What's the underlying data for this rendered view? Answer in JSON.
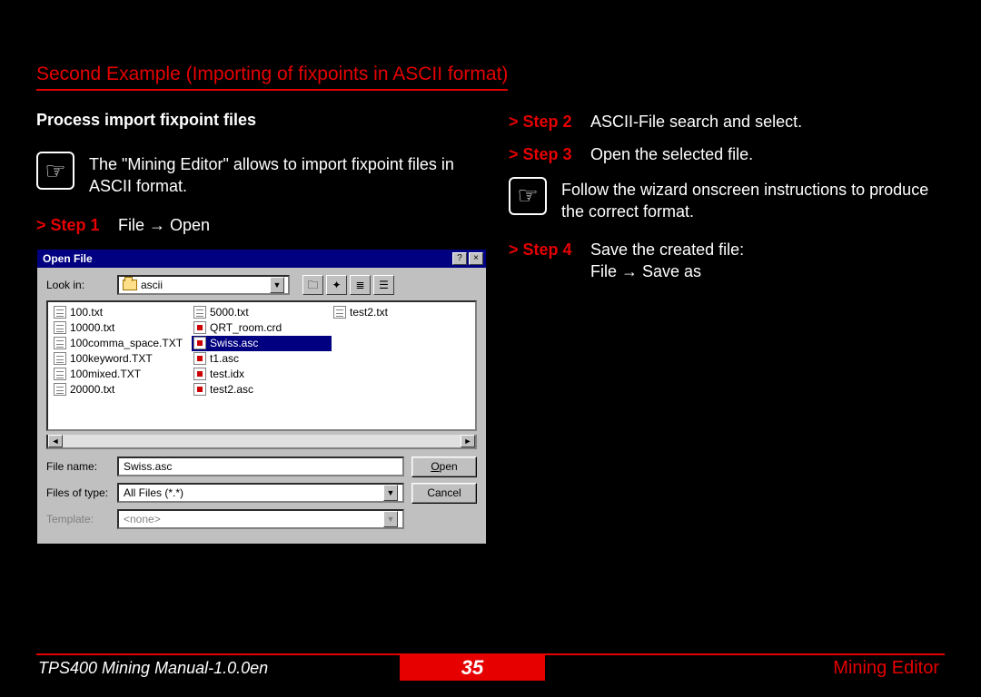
{
  "title": "Second Example (Importing of fixpoints in ASCII format)",
  "left": {
    "subheading": "Process import fixpoint files",
    "note": "The \"Mining Editor\" allows to import fixpoint files in ASCII format.",
    "step1_label": "> Step 1",
    "step1_text": "File → Open"
  },
  "right": {
    "step2_label": "> Step 2",
    "step2_text": "ASCII-File search and select.",
    "step3_label": "> Step 3",
    "step3_text": "Open the selected file.",
    "note": "Follow the wizard onscreen instructions to produce the correct format.",
    "step4_label": "> Step 4",
    "step4_text": "Save the created file:\nFile → Save as"
  },
  "dialog": {
    "title": "Open File",
    "lookin_label": "Look in:",
    "lookin_value": "ascii",
    "files_col1": [
      {
        "name": "100.txt",
        "type": "txt"
      },
      {
        "name": "10000.txt",
        "type": "txt"
      },
      {
        "name": "100comma_space.TXT",
        "type": "txt"
      },
      {
        "name": "100keyword.TXT",
        "type": "txt"
      },
      {
        "name": "100mixed.TXT",
        "type": "txt"
      },
      {
        "name": "20000.txt",
        "type": "txt"
      }
    ],
    "files_col2": [
      {
        "name": "5000.txt",
        "type": "txt"
      },
      {
        "name": "QRT_room.crd",
        "type": "asc"
      },
      {
        "name": "Swiss.asc",
        "type": "asc",
        "selected": true
      },
      {
        "name": "t1.asc",
        "type": "asc"
      },
      {
        "name": "test.idx",
        "type": "asc"
      },
      {
        "name": "test2.asc",
        "type": "asc"
      }
    ],
    "files_col3": [
      {
        "name": "test2.txt",
        "type": "txt"
      }
    ],
    "filename_label": "File name:",
    "filename_value": "Swiss.asc",
    "filetype_label": "Files of type:",
    "filetype_value": "All Files (*.*)",
    "template_label": "Template:",
    "template_value": "<none>",
    "open_btn": "Open",
    "cancel_btn": "Cancel"
  },
  "footer": {
    "left": "TPS400 Mining Manual-1.0.0en",
    "page": "35",
    "right": "Mining Editor"
  },
  "colors": {
    "accent": "#e60000",
    "titlebar": "#000080",
    "win_gray": "#c0c0c0"
  }
}
